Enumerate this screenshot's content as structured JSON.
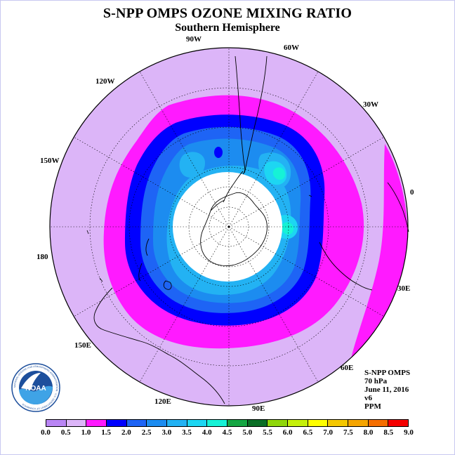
{
  "title": "S-NPP OMPS OZONE MIXING RATIO",
  "subtitle": "Southern Hemisphere",
  "longitude_labels": [
    "90W",
    "60W",
    "30W",
    "0",
    "30E",
    "60E",
    "90E",
    "120E",
    "150E",
    "180",
    "150W",
    "120W"
  ],
  "info": {
    "instrument": "S-NPP OMPS",
    "level": "70 hPa",
    "date": "June 11, 2016",
    "version": "v6",
    "units": "PPM"
  },
  "logo": {
    "name": "noaa-logo",
    "text": "NOAA",
    "ring_text": "NATIONAL OCEANIC AND ATMOSPHERIC ADMINISTRATION · U.S. DEPARTMENT OF COMMERCE"
  },
  "colorbar": {
    "ticks": [
      "0.0",
      "0.5",
      "1.0",
      "1.5",
      "2.0",
      "2.5",
      "3.0",
      "3.5",
      "4.0",
      "4.5",
      "5.0",
      "5.5",
      "6.0",
      "6.5",
      "7.0",
      "7.5",
      "8.0",
      "8.5",
      "9.0"
    ],
    "colors": [
      "#b985f4",
      "#dcb5f8",
      "#ff1aff",
      "#0000ff",
      "#1e64f5",
      "#1c8cf0",
      "#23b2f3",
      "#1dd6f2",
      "#16f2d6",
      "#15a643",
      "#0a6e25",
      "#8fd60a",
      "#c5f00a",
      "#ffff00",
      "#f5c800",
      "#f5a500",
      "#f56e00",
      "#f50000",
      "#8c5a3c"
    ]
  },
  "colors": {
    "band_0_5_1_0": "#dcb5f8",
    "band_1_0_1_5": "#ff1aff",
    "band_1_5_2_0": "#0000ff",
    "band_2_0_2_5": "#1e64f5",
    "band_2_5_3_0": "#1c8cf0",
    "band_3_0_3_5": "#23b2f3",
    "band_3_5_4_0": "#1dd6f2",
    "band_4_0_4_5": "#16f2d6",
    "polar_gap": "#ffffff"
  }
}
